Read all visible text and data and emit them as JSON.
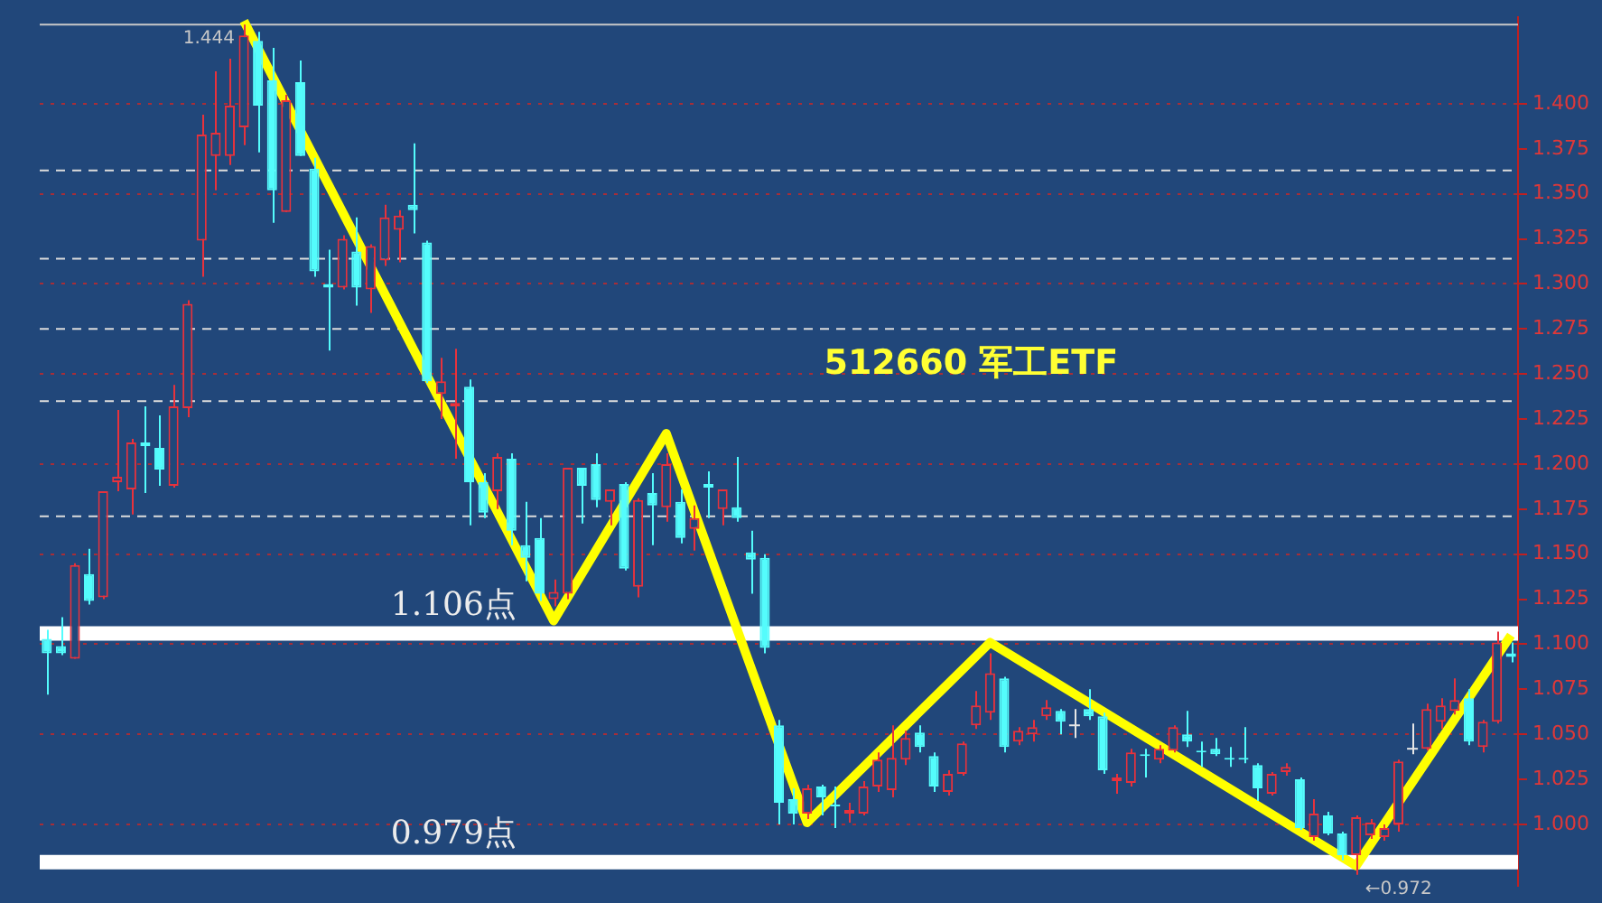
{
  "chart_data": {
    "type": "candlestick",
    "title": "512660 军工ETF",
    "categories": [
      null,
      null,
      null,
      null,
      null,
      null,
      null,
      null,
      null,
      null,
      null,
      null,
      null,
      null,
      null,
      null,
      null,
      null,
      null,
      null,
      null,
      null,
      null,
      null,
      null,
      null,
      null,
      null,
      null,
      null,
      null,
      null,
      null,
      null,
      null,
      null,
      null,
      null,
      null,
      null,
      null,
      null,
      null,
      null,
      null,
      null,
      null,
      null,
      null,
      null,
      null,
      null,
      null,
      null,
      null,
      null,
      null,
      null,
      null,
      null,
      null,
      null,
      null,
      null,
      null,
      null,
      null,
      null,
      null,
      null,
      null,
      null,
      null,
      null,
      null,
      null,
      null,
      null,
      null,
      null,
      null,
      null,
      null,
      null,
      null,
      null,
      null,
      null,
      null,
      null,
      null,
      null,
      null,
      null,
      null,
      null,
      null,
      null,
      null,
      null,
      null,
      null,
      null,
      null,
      null
    ],
    "ohlc": [
      [
        1.103,
        1.108,
        1.072,
        1.095
      ],
      [
        1.099,
        1.115,
        1.094,
        1.095
      ],
      [
        1.092,
        1.145,
        1.092,
        1.144
      ],
      [
        1.139,
        1.153,
        1.122,
        1.124
      ],
      [
        1.126,
        1.185,
        1.125,
        1.185
      ],
      [
        1.19,
        1.23,
        1.185,
        1.193
      ],
      [
        1.186,
        1.214,
        1.172,
        1.212
      ],
      [
        1.212,
        1.232,
        1.184,
        1.21
      ],
      [
        1.209,
        1.227,
        1.188,
        1.197
      ],
      [
        1.188,
        1.244,
        1.187,
        1.232
      ],
      [
        1.231,
        1.291,
        1.226,
        1.289
      ],
      [
        1.324,
        1.394,
        1.304,
        1.383
      ],
      [
        1.371,
        1.418,
        1.352,
        1.384
      ],
      [
        1.371,
        1.425,
        1.366,
        1.399
      ],
      [
        1.387,
        1.444,
        1.377,
        1.438
      ],
      [
        1.435,
        1.44,
        1.373,
        1.399
      ],
      [
        1.413,
        1.431,
        1.334,
        1.352
      ],
      [
        1.34,
        1.405,
        1.34,
        1.402
      ],
      [
        1.412,
        1.424,
        1.371,
        1.371
      ],
      [
        1.364,
        1.37,
        1.304,
        1.307
      ],
      [
        1.3,
        1.319,
        1.263,
        1.298
      ],
      [
        1.298,
        1.327,
        1.297,
        1.325
      ],
      [
        1.318,
        1.337,
        1.288,
        1.298
      ],
      [
        1.297,
        1.322,
        1.284,
        1.321
      ],
      [
        1.313,
        1.344,
        1.31,
        1.337
      ],
      [
        1.33,
        1.341,
        1.312,
        1.338
      ],
      [
        1.344,
        1.378,
        1.328,
        1.341
      ],
      [
        1.323,
        1.324,
        1.245,
        1.246
      ],
      [
        1.239,
        1.259,
        1.225,
        1.246
      ],
      [
        1.232,
        1.264,
        1.203,
        1.234
      ],
      [
        1.243,
        1.247,
        1.166,
        1.19
      ],
      [
        1.19,
        1.195,
        1.17,
        1.173
      ],
      [
        1.185,
        1.206,
        1.175,
        1.204
      ],
      [
        1.203,
        1.206,
        1.155,
        1.163
      ],
      [
        1.155,
        1.179,
        1.135,
        1.148
      ],
      [
        1.159,
        1.17,
        1.124,
        1.128
      ],
      [
        1.125,
        1.136,
        1.121,
        1.129
      ],
      [
        1.128,
        1.198,
        1.125,
        1.198
      ],
      [
        1.198,
        1.198,
        1.167,
        1.188
      ],
      [
        1.2,
        1.206,
        1.176,
        1.18
      ],
      [
        1.179,
        1.186,
        1.166,
        1.186
      ],
      [
        1.189,
        1.19,
        1.141,
        1.142
      ],
      [
        1.132,
        1.181,
        1.126,
        1.18
      ],
      [
        1.184,
        1.195,
        1.155,
        1.177
      ],
      [
        1.176,
        1.206,
        1.168,
        1.2
      ],
      [
        1.179,
        1.186,
        1.156,
        1.159
      ],
      [
        1.164,
        1.177,
        1.152,
        1.17
      ],
      [
        1.189,
        1.196,
        1.17,
        1.187
      ],
      [
        1.175,
        1.186,
        1.166,
        1.186
      ],
      [
        1.176,
        1.204,
        1.168,
        1.17
      ],
      [
        1.151,
        1.163,
        1.128,
        1.147
      ],
      [
        1.148,
        1.15,
        1.095,
        1.098
      ],
      [
        1.055,
        1.058,
        1.0,
        1.012
      ],
      [
        1.014,
        1.02,
        1.0,
        1.006
      ],
      [
        1.006,
        1.022,
        1.003,
        1.02
      ],
      [
        1.021,
        1.022,
        1.005,
        1.015
      ],
      [
        1.011,
        1.021,
        0.998,
        1.01
      ],
      [
        1.006,
        1.012,
        1.001,
        1.008
      ],
      [
        1.006,
        1.024,
        1.005,
        1.021
      ],
      [
        1.021,
        1.04,
        1.018,
        1.036
      ],
      [
        1.019,
        1.055,
        1.015,
        1.037
      ],
      [
        1.036,
        1.052,
        1.033,
        1.048
      ],
      [
        1.051,
        1.055,
        1.04,
        1.043
      ],
      [
        1.038,
        1.04,
        1.018,
        1.021
      ],
      [
        1.018,
        1.03,
        1.016,
        1.028
      ],
      [
        1.028,
        1.046,
        1.027,
        1.045
      ],
      [
        1.055,
        1.074,
        1.053,
        1.066
      ],
      [
        1.062,
        1.095,
        1.058,
        1.084
      ],
      [
        1.081,
        1.082,
        1.04,
        1.043
      ],
      [
        1.046,
        1.054,
        1.044,
        1.052
      ],
      [
        1.05,
        1.058,
        1.046,
        1.054
      ],
      [
        1.06,
        1.069,
        1.058,
        1.065
      ],
      [
        1.063,
        1.064,
        1.05,
        1.057
      ],
      [
        1.055,
        1.064,
        1.048,
        1.055
      ],
      [
        1.064,
        1.075,
        1.058,
        1.06
      ],
      [
        1.06,
        1.062,
        1.028,
        1.03
      ],
      [
        1.024,
        1.028,
        1.017,
        1.026
      ],
      [
        1.023,
        1.042,
        1.021,
        1.04
      ],
      [
        1.039,
        1.042,
        1.026,
        1.038
      ],
      [
        1.036,
        1.044,
        1.034,
        1.042
      ],
      [
        1.041,
        1.055,
        1.04,
        1.054
      ],
      [
        1.05,
        1.063,
        1.043,
        1.046
      ],
      [
        1.041,
        1.046,
        1.032,
        1.04
      ],
      [
        1.042,
        1.048,
        1.038,
        1.039
      ],
      [
        1.037,
        1.043,
        1.032,
        1.036
      ],
      [
        1.037,
        1.054,
        1.034,
        1.036
      ],
      [
        1.033,
        1.034,
        1.013,
        1.02
      ],
      [
        1.017,
        1.029,
        1.016,
        1.028
      ],
      [
        1.029,
        1.034,
        1.027,
        1.032
      ],
      [
        1.025,
        1.026,
        0.997,
        0.998
      ],
      [
        0.993,
        1.014,
        0.991,
        1.006
      ],
      [
        1.005,
        1.007,
        0.994,
        0.995
      ],
      [
        0.995,
        0.996,
        0.98,
        0.983
      ],
      [
        0.983,
        1.005,
        0.972,
        1.004
      ],
      [
        0.994,
        1.003,
        0.992,
        1.001
      ],
      [
        0.993,
        1.0,
        0.991,
        0.998
      ],
      [
        1.0,
        1.036,
        0.996,
        1.035
      ],
      [
        1.042,
        1.056,
        1.039,
        1.042
      ],
      [
        1.042,
        1.067,
        1.041,
        1.064
      ],
      [
        1.057,
        1.07,
        1.053,
        1.066
      ],
      [
        1.063,
        1.081,
        1.061,
        1.069
      ],
      [
        1.07,
        1.075,
        1.044,
        1.046
      ],
      [
        1.043,
        1.058,
        1.04,
        1.057
      ],
      [
        1.057,
        1.107,
        1.056,
        1.101
      ],
      [
        1.095,
        1.101,
        1.09,
        1.093
      ]
    ],
    "colors": [
      "#54fcfc",
      "#54fcfc",
      "#e8323c",
      "#54fcfc",
      "#e8323c",
      "#e8323c",
      "#e8323c",
      "#54fcfc",
      "#54fcfc",
      "#e8323c",
      "#e8323c",
      "#e8323c",
      "#e8323c",
      "#e8323c",
      "#e8323c",
      "#54fcfc",
      "#54fcfc",
      "#e8323c",
      "#54fcfc",
      "#54fcfc",
      "#54fcfc",
      "#e8323c",
      "#54fcfc",
      "#e8323c",
      "#e8323c",
      "#e8323c",
      "#54fcfc",
      "#54fcfc",
      "#e8323c",
      "#e8323c",
      "#54fcfc",
      "#54fcfc",
      "#e8323c",
      "#54fcfc",
      "#54fcfc",
      "#54fcfc",
      "#e8323c",
      "#e8323c",
      "#54fcfc",
      "#54fcfc",
      "#e8323c",
      "#54fcfc",
      "#e8323c",
      "#54fcfc",
      "#e8323c",
      "#54fcfc",
      "#e8323c",
      "#54fcfc",
      "#e8323c",
      "#54fcfc",
      "#54fcfc",
      "#54fcfc",
      "#54fcfc",
      "#54fcfc",
      "#e8323c",
      "#54fcfc",
      "#54fcfc",
      "#e8323c",
      "#e8323c",
      "#e8323c",
      "#e8323c",
      "#e8323c",
      "#54fcfc",
      "#54fcfc",
      "#e8323c",
      "#e8323c",
      "#e8323c",
      "#e8323c",
      "#54fcfc",
      "#e8323c",
      "#e8323c",
      "#e8323c",
      "#54fcfc",
      "#e6e6e6",
      "#54fcfc",
      "#54fcfc",
      "#e8323c",
      "#e8323c",
      "#54fcfc",
      "#e8323c",
      "#e8323c",
      "#54fcfc",
      "#54fcfc",
      "#54fcfc",
      "#54fcfc",
      "#54fcfc",
      "#54fcfc",
      "#e8323c",
      "#e8323c",
      "#54fcfc",
      "#e8323c",
      "#54fcfc",
      "#54fcfc",
      "#e8323c",
      "#e8323c",
      "#e8323c",
      "#e8323c",
      "#e6e6e6",
      "#e8323c",
      "#e8323c",
      "#e8323c",
      "#54fcfc",
      "#e8323c",
      "#e8323c",
      "#54fcfc"
    ],
    "series": [
      {
        "type": "line",
        "color": "#ffff00",
        "values": [
          null,
          null,
          null,
          null,
          null,
          null,
          null,
          null,
          null,
          null,
          null,
          null,
          null,
          null,
          1.446,
          null,
          null,
          null,
          null,
          null,
          null,
          null,
          null,
          null,
          null,
          null,
          null,
          null,
          null,
          null,
          null,
          null,
          null,
          null,
          null,
          null,
          1.113,
          null,
          null,
          null,
          null,
          null,
          null,
          null,
          1.217,
          null,
          null,
          null,
          null,
          null,
          null,
          null,
          null,
          null,
          1.001,
          null,
          null,
          null,
          null,
          null,
          null,
          null,
          null,
          null,
          null,
          null,
          null,
          1.101,
          null,
          null,
          null,
          null,
          null,
          null,
          null,
          null,
          null,
          null,
          null,
          null,
          null,
          null,
          null,
          null,
          null,
          null,
          null,
          null,
          null,
          null,
          null,
          null,
          null,
          0.977,
          null,
          null,
          null,
          null,
          null,
          null,
          null,
          null,
          null,
          null,
          1.105
        ]
      }
    ],
    "ylim": [
      0.966,
      1.448
    ],
    "yticks": [
      {
        "value": 1.0,
        "label": "1.000"
      },
      {
        "value": 1.025,
        "label": "1.025"
      },
      {
        "value": 1.05,
        "label": "1.050"
      },
      {
        "value": 1.075,
        "label": "1.075"
      },
      {
        "value": 1.1,
        "label": "1.100"
      },
      {
        "value": 1.125,
        "label": "1.125"
      },
      {
        "value": 1.15,
        "label": "1.150"
      },
      {
        "value": 1.175,
        "label": "1.175"
      },
      {
        "value": 1.2,
        "label": "1.200"
      },
      {
        "value": 1.225,
        "label": "1.225"
      },
      {
        "value": 1.25,
        "label": "1.250"
      },
      {
        "value": 1.275,
        "label": "1.275"
      },
      {
        "value": 1.3,
        "label": "1.300"
      },
      {
        "value": 1.325,
        "label": "1.325"
      },
      {
        "value": 1.35,
        "label": "1.350"
      },
      {
        "value": 1.375,
        "label": "1.375"
      },
      {
        "value": 1.4,
        "label": "1.400"
      }
    ],
    "grid": "y",
    "ref_lines": [
      {
        "axis": "y",
        "value": 1.106,
        "label": "1.106点",
        "color": "#ffffff"
      },
      {
        "axis": "y",
        "value": 0.979,
        "label": "0.979点",
        "color": "#ffffff"
      },
      {
        "axis": "y",
        "value": 1.444,
        "color": "#c8c8c8"
      },
      {
        "axis": "y",
        "value": 1.363,
        "color": "#dcdcdc",
        "line_style": "dashed"
      },
      {
        "axis": "y",
        "value": 1.314,
        "color": "#dcdcdc",
        "line_style": "dashed"
      },
      {
        "axis": "y",
        "value": 1.275,
        "color": "#dcdcdc",
        "line_style": "dashed"
      },
      {
        "axis": "y",
        "value": 1.235,
        "color": "#dcdcdc",
        "line_style": "dashed"
      },
      {
        "axis": "y",
        "value": 1.171,
        "color": "#dcdcdc",
        "line_style": "dashed"
      }
    ],
    "annotations": [
      {
        "text": "1.444",
        "y": 1.444
      },
      {
        "text": "←0.972",
        "y": 0.972
      }
    ],
    "legend": false
  }
}
